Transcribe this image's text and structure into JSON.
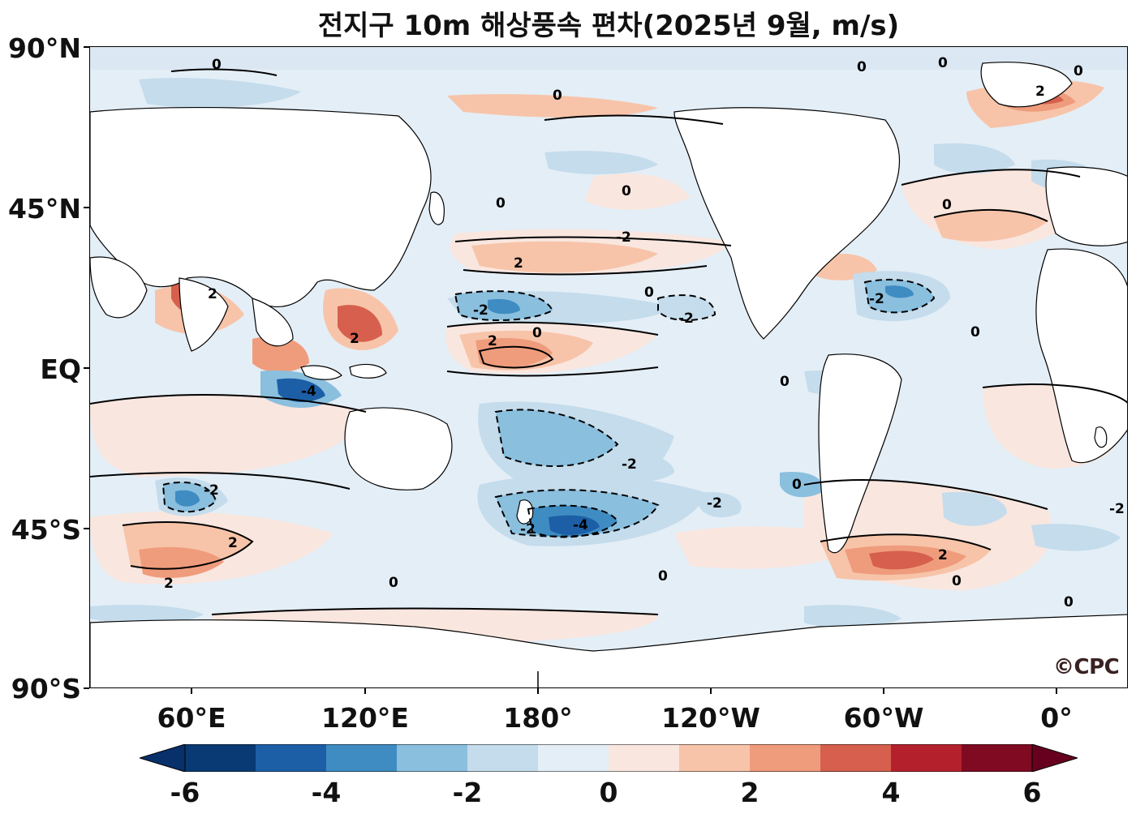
{
  "title": "전지구 10m 해상풍속 편차(2025년 9월, m/s)",
  "logo": "©CPC",
  "lat_labels": [
    "90°N",
    "45°N",
    "EQ",
    "45°S",
    "90°S"
  ],
  "lon_labels": [
    "60°E",
    "120°E",
    "180°",
    "120°W",
    "60°W",
    "0°"
  ],
  "colorbar": {
    "tick_labels": [
      "-6",
      "-4",
      "-2",
      "0",
      "2",
      "4",
      "6"
    ],
    "levels": [
      -6,
      -5,
      -4,
      -3,
      -2,
      -1,
      0,
      1,
      2,
      3,
      4,
      5,
      6
    ],
    "colors": [
      "#0a3a73",
      "#1d5fa6",
      "#3f8cc3",
      "#8abfde",
      "#c4dcec",
      "#e4eef6",
      "#f9e6df",
      "#f7c4a9",
      "#ef9c7c",
      "#d6604d",
      "#b4212d",
      "#7f0a21"
    ],
    "extend_low_color": "#08306b",
    "extend_high_color": "#67001f"
  },
  "contour_labels": {
    "zero": "0",
    "pos2": "2",
    "neg2": "-2",
    "neg4": "-4"
  },
  "colors": {
    "land": "#ffffff",
    "ocean_base": "#e4eef6",
    "contour": "#000000"
  }
}
